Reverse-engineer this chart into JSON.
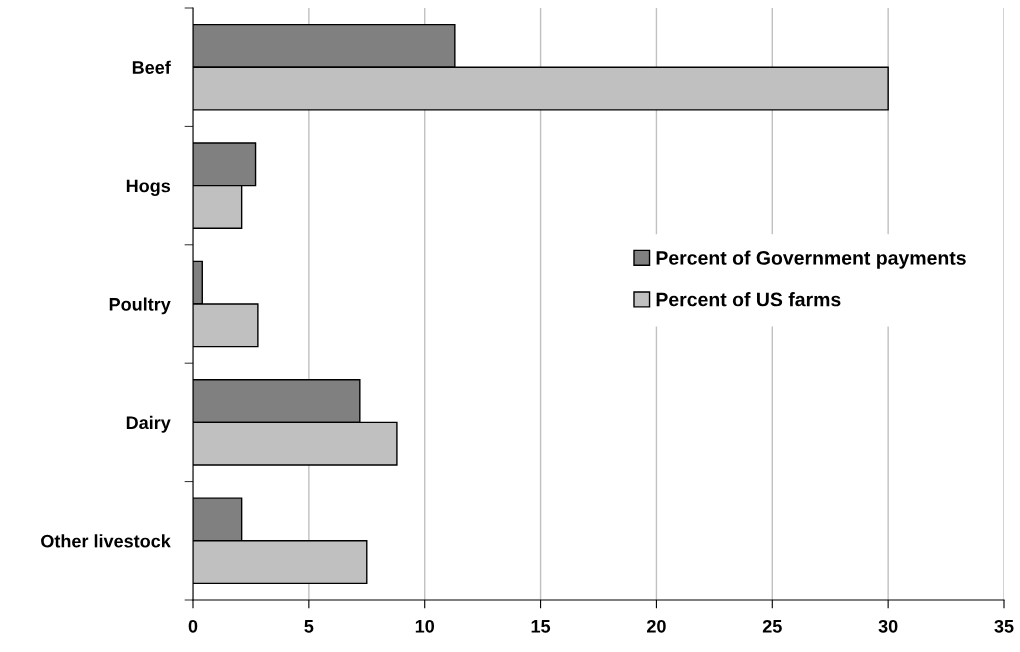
{
  "chart_data": {
    "type": "bar",
    "orientation": "horizontal",
    "categories": [
      "Beef",
      "Hogs",
      "Poultry",
      "Dairy",
      "Other livestock"
    ],
    "series": [
      {
        "name": "Percent of Government payments",
        "color": "#808080",
        "values": [
          11.3,
          2.7,
          0.4,
          7.2,
          2.1
        ]
      },
      {
        "name": "Percent of US farms",
        "color": "#c0c0c0",
        "values": [
          30.0,
          2.1,
          2.8,
          8.8,
          7.5
        ]
      }
    ],
    "xlim": [
      0,
      35
    ],
    "xticks": [
      0,
      5,
      10,
      15,
      20,
      25,
      30,
      35
    ],
    "grid": "x",
    "legend": "right"
  }
}
